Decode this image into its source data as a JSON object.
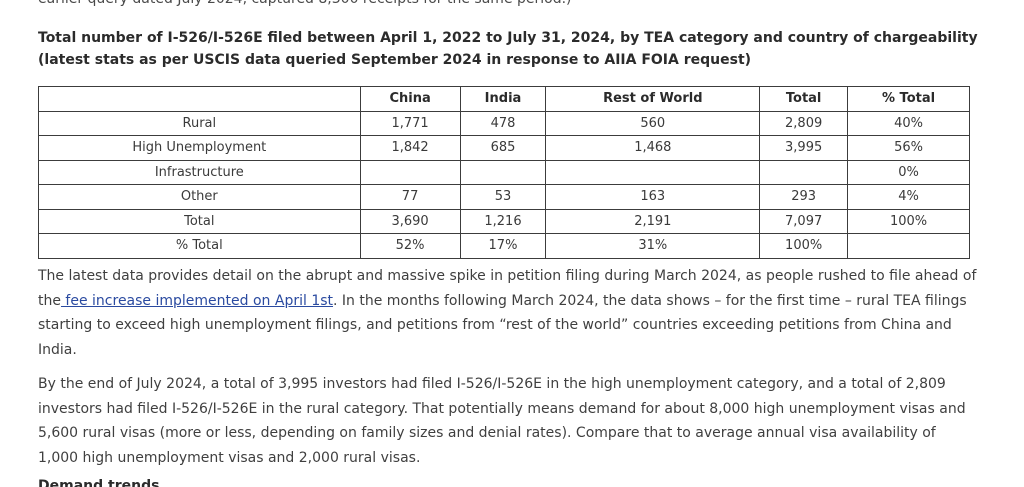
{
  "top_clipped_text": "earlier query dated July 2024, captured 8,300 receipts for the same period.)",
  "heading": "Total number of I-526/I-526E filed between April 1, 2022 to July 31, 2024, by TEA category and country of chargeability (latest stats as per USCIS data queried September 2024 in response to AIIA FOIA request)",
  "table": {
    "headers": [
      "",
      "China",
      "India",
      "Rest of World",
      "Total",
      "% Total"
    ],
    "rows": [
      [
        "Rural",
        "1,771",
        "478",
        "560",
        "2,809",
        "40%"
      ],
      [
        "High Unemployment",
        "1,842",
        "685",
        "1,468",
        "3,995",
        "56%"
      ],
      [
        "Infrastructure",
        "",
        "",
        "",
        "",
        "0%"
      ],
      [
        "Other",
        "77",
        "53",
        "163",
        "293",
        "4%"
      ],
      [
        "Total",
        "3,690",
        "1,216",
        "2,191",
        "7,097",
        "100%"
      ],
      [
        "% Total",
        "52%",
        "17%",
        "31%",
        "100%",
        ""
      ]
    ]
  },
  "paragraph1": {
    "before_link": "The latest data provides detail on the abrupt and massive spike in petition filing during March 2024, as people rushed to file ahead of the",
    "link_text": " fee increase implemented on April 1st",
    "after_link": ". In the months following March 2024, the data shows – for the first time – rural TEA filings starting to exceed high unemployment filings, and petitions from “rest of the world” countries exceeding petitions from China and India."
  },
  "paragraph2": "By the end of July 2024, a total of 3,995 investors had filed I-526/I-526E in the high unemployment category, and a total of 2,809 investors had filed I-526/I-526E in the rural category. That potentially means demand for about 8,000 high unemployment visas and 5,600 rural visas (more or less, depending on family sizes and denial rates). Compare that to average annual visa availability of 1,000 high unemployment visas and 2,000 rural visas.",
  "bottom_clipped_text": "Demand trends"
}
